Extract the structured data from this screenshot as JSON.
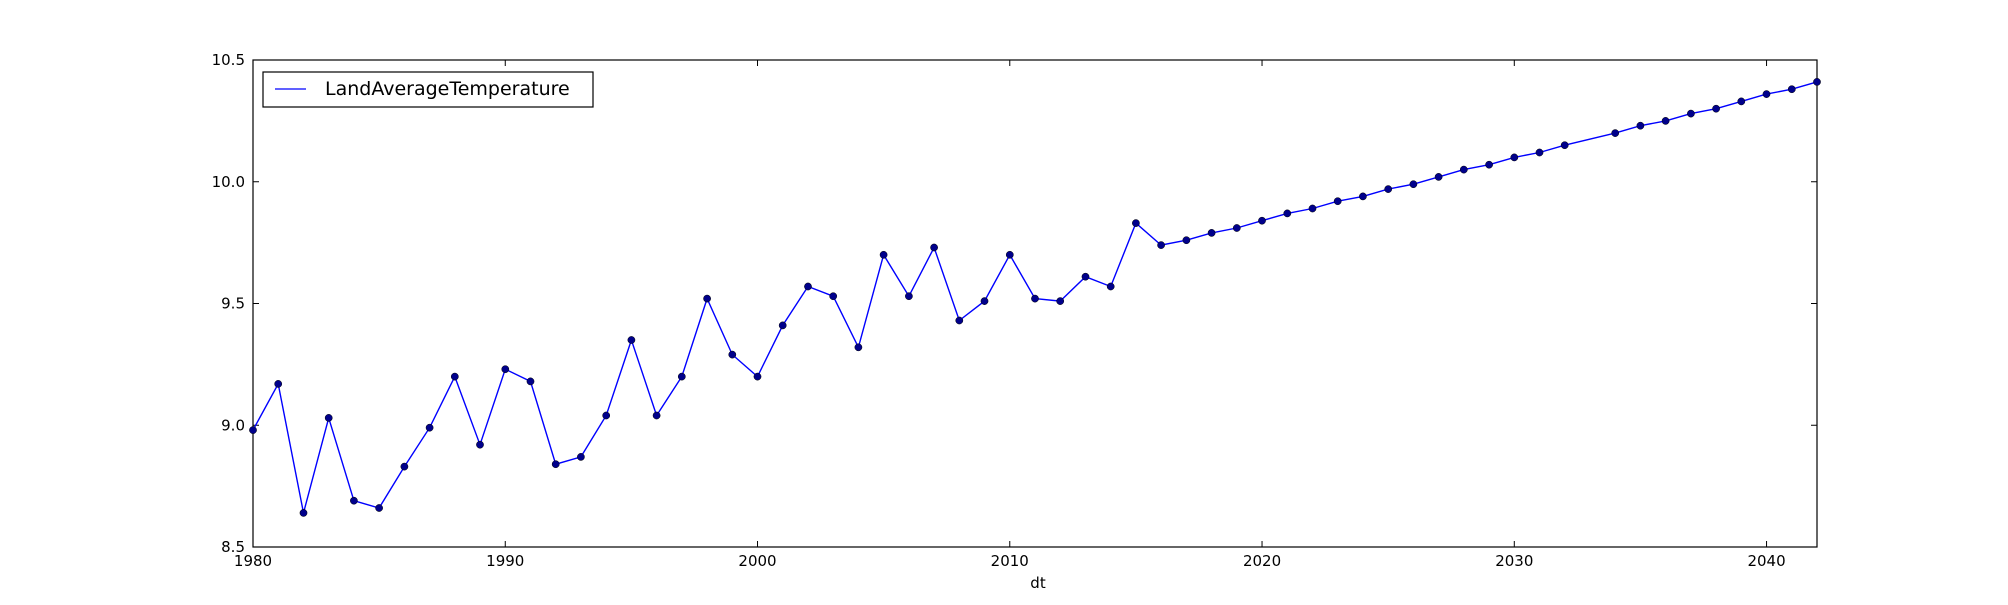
{
  "chart_data": {
    "type": "line",
    "title": "",
    "xlabel": "dt",
    "ylabel": "",
    "xlim": [
      1980,
      2042
    ],
    "ylim": [
      8.5,
      10.5
    ],
    "x_ticks": [
      "1980",
      "1990",
      "2000",
      "2010",
      "2020",
      "2030",
      "2040"
    ],
    "y_ticks": [
      "8.5",
      "9.0",
      "9.5",
      "10.0",
      "10.5"
    ],
    "grid": false,
    "legend_position": "top-left",
    "series": [
      {
        "name": "LandAverageTemperature",
        "color": "#0000ff",
        "marker_color": "#00008b",
        "points": [
          [
            1980,
            8.98
          ],
          [
            1981,
            9.17
          ],
          [
            1982,
            8.64
          ],
          [
            1983,
            9.03
          ],
          [
            1984,
            8.69
          ],
          [
            1985,
            8.66
          ],
          [
            1986,
            8.83
          ],
          [
            1987,
            8.99
          ],
          [
            1988,
            9.2
          ],
          [
            1989,
            8.92
          ],
          [
            1990,
            9.23
          ],
          [
            1991,
            9.18
          ],
          [
            1992,
            8.84
          ],
          [
            1993,
            8.87
          ],
          [
            1994,
            9.04
          ],
          [
            1995,
            9.35
          ],
          [
            1996,
            9.04
          ],
          [
            1997,
            9.2
          ],
          [
            1998,
            9.52
          ],
          [
            1999,
            9.29
          ],
          [
            2000,
            9.2
          ],
          [
            2001,
            9.41
          ],
          [
            2002,
            9.57
          ],
          [
            2003,
            9.53
          ],
          [
            2004,
            9.32
          ],
          [
            2005,
            9.7
          ],
          [
            2006,
            9.53
          ],
          [
            2007,
            9.73
          ],
          [
            2008,
            9.43
          ],
          [
            2009,
            9.51
          ],
          [
            2010,
            9.7
          ],
          [
            2011,
            9.52
          ],
          [
            2012,
            9.51
          ],
          [
            2013,
            9.61
          ],
          [
            2014,
            9.57
          ],
          [
            2015,
            9.83
          ],
          [
            2016,
            9.74
          ],
          [
            2017,
            9.76
          ],
          [
            2018,
            9.79
          ],
          [
            2019,
            9.81
          ],
          [
            2020,
            9.84
          ],
          [
            2021,
            9.87
          ],
          [
            2022,
            9.89
          ],
          [
            2023,
            9.92
          ],
          [
            2024,
            9.94
          ],
          [
            2025,
            9.97
          ],
          [
            2026,
            9.99
          ],
          [
            2027,
            10.02
          ],
          [
            2028,
            10.05
          ],
          [
            2029,
            10.07
          ],
          [
            2030,
            10.1
          ],
          [
            2031,
            10.12
          ],
          [
            2032,
            10.15
          ],
          [
            2034,
            10.2
          ],
          [
            2035,
            10.23
          ],
          [
            2036,
            10.25
          ],
          [
            2037,
            10.28
          ],
          [
            2038,
            10.3
          ],
          [
            2039,
            10.33
          ],
          [
            2040,
            10.36
          ],
          [
            2041,
            10.38
          ],
          [
            2042,
            10.41
          ]
        ]
      }
    ]
  }
}
